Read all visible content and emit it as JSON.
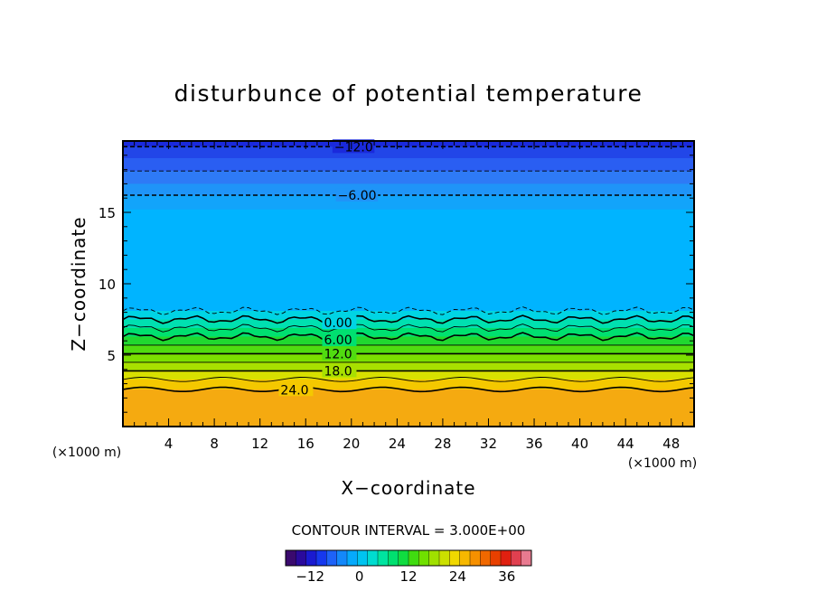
{
  "chart_data": {
    "type": "heatmap",
    "title": "disturbunce of potential temperature",
    "xlabel": "X−coordinate",
    "ylabel": "Z−coordinate",
    "x_unit": "(×1000 m)",
    "y_unit": "(×1000 m)",
    "xlim": [
      0,
      50
    ],
    "ylim": [
      0,
      20
    ],
    "x_ticks": [
      4,
      8,
      12,
      16,
      20,
      24,
      28,
      32,
      36,
      40,
      44,
      48
    ],
    "x_tick_labels": [
      "4",
      "8",
      "12",
      "16",
      "20",
      "24",
      "28",
      "32",
      "36",
      "40",
      "44",
      "48"
    ],
    "y_ticks": [
      5,
      10,
      15
    ],
    "y_tick_labels": [
      "5",
      "10",
      "15"
    ],
    "contour_interval_text": "CONTOUR INTERVAL = 3.000E+00",
    "contour_interval": 3,
    "levels": [
      {
        "value": -12,
        "z": 19.6,
        "label": "−12.0",
        "label_x": 18.5,
        "dashed": true,
        "bold": true
      },
      {
        "value": -9,
        "z": 17.9,
        "dashed": true,
        "bold": false
      },
      {
        "value": -6,
        "z": 16.2,
        "label": "−6.00",
        "label_x": 18.8,
        "dashed": true,
        "bold": true
      },
      {
        "value": -3,
        "z": 8.1,
        "dashed": true,
        "bold": false
      },
      {
        "value": 0,
        "z": 7.5,
        "label": "0.00",
        "label_x": 17.6,
        "dashed": false,
        "bold": true
      },
      {
        "value": 3,
        "z": 6.9,
        "dashed": false,
        "bold": false
      },
      {
        "value": 6,
        "z": 6.3,
        "label": "6.00",
        "label_x": 17.6,
        "dashed": false,
        "bold": true
      },
      {
        "value": 9,
        "z": 5.7,
        "dashed": false,
        "bold": false
      },
      {
        "value": 12,
        "z": 5.1,
        "label": "12.0",
        "label_x": 17.6,
        "dashed": false,
        "bold": true
      },
      {
        "value": 15,
        "z": 4.5,
        "dashed": false,
        "bold": false
      },
      {
        "value": 18,
        "z": 3.9,
        "label": "18.0",
        "label_x": 17.6,
        "dashed": false,
        "bold": true
      },
      {
        "value": 21,
        "z": 3.3,
        "dashed": false,
        "bold": false
      },
      {
        "value": 24,
        "z": 2.6,
        "label": "24.0",
        "label_x": 13.8,
        "dashed": false,
        "bold": true
      }
    ],
    "fill_bands": [
      {
        "z0": 19.6,
        "z1": 20.0,
        "color": "#1a2adc"
      },
      {
        "z0": 18.8,
        "z1": 19.6,
        "color": "#2246e8"
      },
      {
        "z0": 17.9,
        "z1": 18.8,
        "color": "#2a5ef2"
      },
      {
        "z0": 17.0,
        "z1": 17.9,
        "color": "#2e7af6"
      },
      {
        "z0": 16.2,
        "z1": 17.0,
        "color": "#1f94f8"
      },
      {
        "z0": 15.2,
        "z1": 16.2,
        "color": "#12a4fa"
      },
      {
        "z0": 8.1,
        "z1": 15.2,
        "color": "#00b4ff"
      },
      {
        "z0": 7.5,
        "z1": 8.1,
        "color": "#00d4e4"
      },
      {
        "z0": 6.9,
        "z1": 7.5,
        "color": "#00e0b0"
      },
      {
        "z0": 6.3,
        "z1": 6.9,
        "color": "#00e070"
      },
      {
        "z0": 5.7,
        "z1": 6.3,
        "color": "#20d830"
      },
      {
        "z0": 5.1,
        "z1": 5.7,
        "color": "#50dc10"
      },
      {
        "z0": 4.5,
        "z1": 5.1,
        "color": "#7ce000"
      },
      {
        "z0": 3.9,
        "z1": 4.5,
        "color": "#a8e000"
      },
      {
        "z0": 3.3,
        "z1": 3.9,
        "color": "#d8e000"
      },
      {
        "z0": 2.6,
        "z1": 3.3,
        "color": "#f4c800"
      },
      {
        "z0": 0.0,
        "z1": 2.6,
        "color": "#f5aa10"
      }
    ],
    "colorbar": {
      "min": -18,
      "max": 42,
      "tick_values": [
        -12,
        0,
        12,
        24,
        36
      ],
      "tick_labels": [
        "−12",
        "0",
        "12",
        "24",
        "36"
      ],
      "colors": [
        "#3a0a6e",
        "#2a0a9c",
        "#1a1ad0",
        "#1638ee",
        "#1e62f8",
        "#1488fa",
        "#06aafc",
        "#00c4f0",
        "#00dcd0",
        "#00e4a0",
        "#00e070",
        "#10dc40",
        "#40dc10",
        "#70e000",
        "#a0e000",
        "#cce000",
        "#f0d800",
        "#f6b800",
        "#f69000",
        "#f06800",
        "#e84000",
        "#e02010",
        "#e04050",
        "#e87a90"
      ]
    },
    "grid": false,
    "legend": "none"
  }
}
